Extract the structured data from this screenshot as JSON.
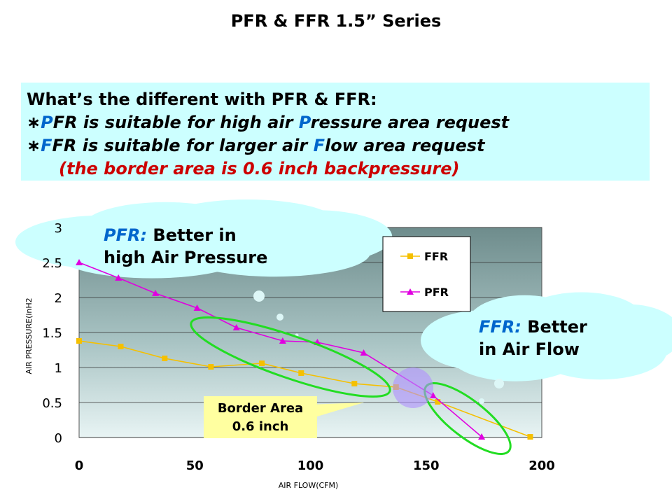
{
  "title": "PFR  &  FFR 1.5” Series",
  "info": {
    "heading": "What’s the different with PFR & FFR:",
    "line1": {
      "asterisk": "∗",
      "letter": "P",
      "pre": "FR is suitable for high air ",
      "letter2": "P",
      "post": "ressure area request"
    },
    "line2": {
      "asterisk": "∗",
      "letter": "F",
      "pre": "FR is suitable for larger  air ",
      "letter2": "F",
      "post": "low area request"
    },
    "line3": "(the border area is 0.6 inch backpressure)"
  },
  "callouts": {
    "pfr": {
      "key": "PFR:",
      "text1": " Better in",
      "text2": "high Air Pressure"
    },
    "ffr": {
      "key": "FFR:",
      "text1": " Better",
      "text2": "in Air Flow"
    },
    "border": {
      "line1": "Border  Area",
      "line2": "0.6 inch"
    }
  },
  "chart_data": {
    "type": "line",
    "xlabel": "AIR FLOW(CFM)",
    "ylabel": "AIR PRESSURE(inH2",
    "xlim": [
      0,
      200
    ],
    "ylim": [
      0,
      3
    ],
    "xticks": [
      "0",
      "50",
      "100",
      "150",
      "200"
    ],
    "yticks": [
      "0",
      "0.5",
      "1",
      "1.5",
      "2",
      "2.5",
      "3"
    ],
    "grid": "horizontal",
    "legend_position": "top-right",
    "series": [
      {
        "name": "FFR",
        "color": "#f5c000",
        "marker": "square",
        "x": [
          0,
          18,
          37,
          57,
          79,
          96,
          119,
          137,
          155,
          195
        ],
        "y": [
          1.38,
          1.3,
          1.13,
          1.01,
          1.06,
          0.92,
          0.77,
          0.72,
          0.51,
          0.01
        ]
      },
      {
        "name": "PFR",
        "color": "#e000e0",
        "marker": "triangle",
        "x": [
          0,
          17,
          33,
          51,
          68,
          88,
          103,
          123,
          153,
          174
        ],
        "y": [
          2.5,
          2.28,
          2.06,
          1.85,
          1.57,
          1.38,
          1.36,
          1.21,
          0.6,
          0.01
        ]
      }
    ]
  }
}
